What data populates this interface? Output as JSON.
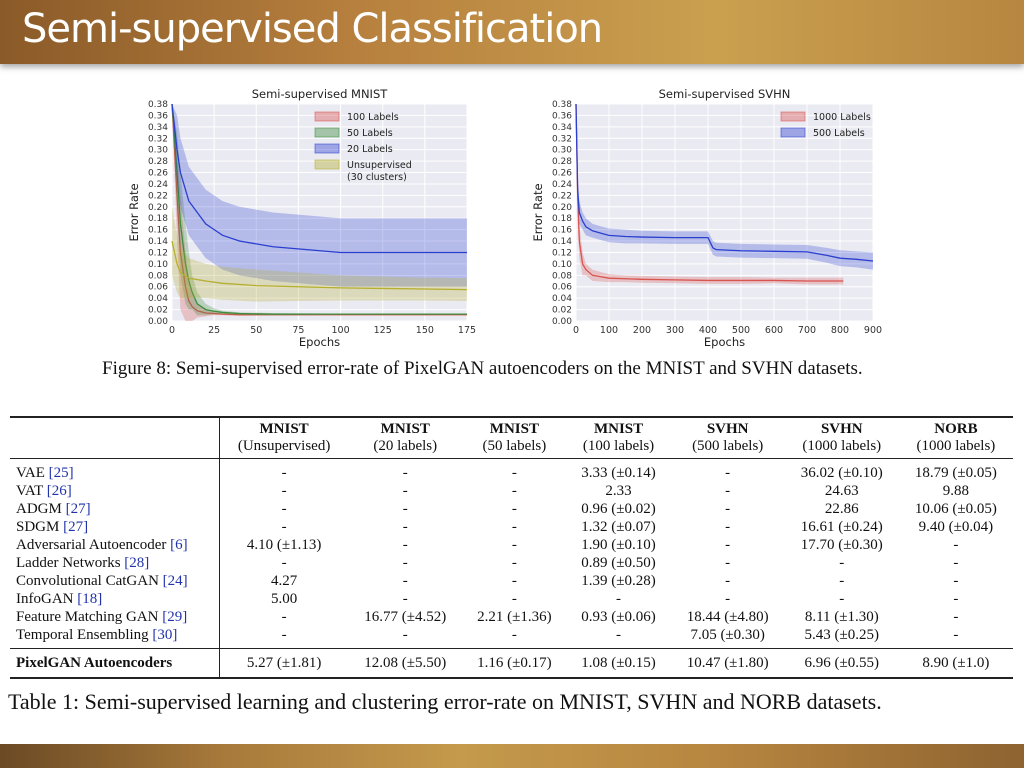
{
  "slide": {
    "title": "Semi-supervised Classification"
  },
  "figure": {
    "caption": "Figure 8: Semi-supervised error-rate of PixelGAN autoencoders on the MNIST and SVHN datasets.",
    "colors": {
      "red": "#e08a8a",
      "green": "#5aa85a",
      "blue": "#3a4fd0",
      "olive": "#c8c24a"
    }
  },
  "chart_data": [
    {
      "type": "line",
      "title": "Semi-supervised MNIST",
      "xlabel": "Epochs",
      "ylabel": "Error Rate",
      "xlim": [
        0,
        175
      ],
      "ylim": [
        0,
        0.38
      ],
      "xticks": [
        "0",
        "25",
        "50",
        "75",
        "100",
        "125",
        "150",
        "175"
      ],
      "yticks": [
        "0.00",
        "0.02",
        "0.04",
        "0.06",
        "0.08",
        "0.10",
        "0.12",
        "0.14",
        "0.16",
        "0.18",
        "0.20",
        "0.22",
        "0.24",
        "0.26",
        "0.28",
        "0.30",
        "0.32",
        "0.34",
        "0.36",
        "0.38"
      ],
      "grid": true,
      "legend_position": "top-right",
      "series": [
        {
          "name": "100 Labels",
          "color": "#d9534f",
          "x": [
            0,
            3,
            5,
            8,
            10,
            12,
            15,
            20,
            25,
            30,
            40,
            60,
            100,
            175
          ],
          "y": [
            0.38,
            0.22,
            0.12,
            0.06,
            0.035,
            0.025,
            0.018,
            0.014,
            0.013,
            0.012,
            0.011,
            0.011,
            0.011,
            0.011
          ],
          "band": [
            0.38,
            0.3,
            0.22,
            0.12,
            0.07,
            0.05,
            0.03,
            0.02,
            0.016,
            0.014,
            0.013,
            0.012,
            0.012,
            0.012
          ]
        },
        {
          "name": "50 Labels",
          "color": "#3c8d3c",
          "x": [
            0,
            3,
            5,
            8,
            10,
            12,
            15,
            20,
            25,
            30,
            40,
            60,
            100,
            175
          ],
          "y": [
            0.38,
            0.26,
            0.17,
            0.1,
            0.07,
            0.05,
            0.03,
            0.02,
            0.017,
            0.015,
            0.013,
            0.012,
            0.012,
            0.012
          ],
          "band": [
            0.38,
            0.33,
            0.26,
            0.17,
            0.12,
            0.08,
            0.05,
            0.03,
            0.022,
            0.018,
            0.015,
            0.014,
            0.013,
            0.013
          ]
        },
        {
          "name": "20 Labels",
          "color": "#2a3fcf",
          "x": [
            0,
            3,
            5,
            8,
            10,
            15,
            20,
            25,
            30,
            40,
            60,
            80,
            100,
            120,
            150,
            175
          ],
          "y": [
            0.38,
            0.3,
            0.26,
            0.23,
            0.21,
            0.19,
            0.17,
            0.16,
            0.15,
            0.14,
            0.13,
            0.125,
            0.12,
            0.12,
            0.12,
            0.12
          ],
          "band": [
            0.38,
            0.36,
            0.32,
            0.29,
            0.27,
            0.25,
            0.23,
            0.22,
            0.21,
            0.2,
            0.19,
            0.185,
            0.18,
            0.18,
            0.18,
            0.18
          ]
        },
        {
          "name": "Unsupervised\n(30 clusters)",
          "color": "#b5ae2e",
          "x": [
            0,
            3,
            5,
            10,
            20,
            30,
            50,
            75,
            100,
            125,
            150,
            175
          ],
          "y": [
            0.14,
            0.1,
            0.085,
            0.075,
            0.07,
            0.066,
            0.062,
            0.06,
            0.058,
            0.057,
            0.056,
            0.055
          ],
          "band": [
            0.2,
            0.15,
            0.13,
            0.11,
            0.1,
            0.095,
            0.09,
            0.085,
            0.08,
            0.078,
            0.076,
            0.075
          ]
        }
      ]
    },
    {
      "type": "line",
      "title": "Semi-supervised SVHN",
      "xlabel": "Epochs",
      "ylabel": "Error Rate",
      "xlim": [
        0,
        900
      ],
      "ylim": [
        0,
        0.38
      ],
      "xticks": [
        "0",
        "100",
        "200",
        "300",
        "400",
        "500",
        "600",
        "700",
        "800",
        "900"
      ],
      "yticks": [
        "0.00",
        "0.02",
        "0.04",
        "0.06",
        "0.08",
        "0.10",
        "0.12",
        "0.14",
        "0.16",
        "0.18",
        "0.20",
        "0.22",
        "0.24",
        "0.26",
        "0.28",
        "0.30",
        "0.32",
        "0.34",
        "0.36",
        "0.38"
      ],
      "grid": true,
      "legend_position": "top-right",
      "series": [
        {
          "name": "1000 Labels",
          "color": "#d9534f",
          "x": [
            0,
            5,
            10,
            20,
            30,
            50,
            80,
            100,
            150,
            200,
            300,
            400,
            500,
            600,
            700,
            810
          ],
          "y": [
            0.38,
            0.22,
            0.14,
            0.1,
            0.09,
            0.08,
            0.077,
            0.075,
            0.074,
            0.073,
            0.072,
            0.071,
            0.071,
            0.071,
            0.07,
            0.07
          ],
          "band": [
            0.38,
            0.26,
            0.17,
            0.12,
            0.1,
            0.09,
            0.085,
            0.082,
            0.08,
            0.079,
            0.078,
            0.077,
            0.077,
            0.076,
            0.076,
            0.076
          ]
        },
        {
          "name": "500 Labels",
          "color": "#2a3fcf",
          "x": [
            0,
            5,
            10,
            20,
            30,
            50,
            80,
            100,
            150,
            200,
            300,
            400,
            415,
            425,
            500,
            600,
            700,
            760,
            800,
            850,
            900
          ],
          "y": [
            0.38,
            0.23,
            0.19,
            0.175,
            0.165,
            0.158,
            0.153,
            0.15,
            0.148,
            0.147,
            0.146,
            0.146,
            0.128,
            0.125,
            0.123,
            0.122,
            0.121,
            0.115,
            0.11,
            0.108,
            0.105
          ],
          "band": [
            0.38,
            0.25,
            0.21,
            0.19,
            0.18,
            0.17,
            0.165,
            0.162,
            0.16,
            0.158,
            0.157,
            0.157,
            0.14,
            0.137,
            0.135,
            0.134,
            0.133,
            0.128,
            0.124,
            0.122,
            0.12
          ]
        }
      ]
    }
  ],
  "table": {
    "caption": "Table 1: Semi-supervised learning and clustering error-rate on MNIST, SVHN and NORB datasets.",
    "headers": [
      {
        "name": "MNIST",
        "sub": "(Unsupervised)"
      },
      {
        "name": "MNIST",
        "sub": "(20 labels)"
      },
      {
        "name": "MNIST",
        "sub": "(50 labels)"
      },
      {
        "name": "MNIST",
        "sub": "(100 labels)"
      },
      {
        "name": "SVHN",
        "sub": "(500 labels)"
      },
      {
        "name": "SVHN",
        "sub": "(1000 labels)"
      },
      {
        "name": "NORB",
        "sub": "(1000 labels)"
      }
    ],
    "rows": [
      {
        "method": "VAE ",
        "ref": "[25]",
        "cells": [
          "-",
          "-",
          "-",
          "3.33 (±0.14)",
          "-",
          "36.02 (±0.10)",
          "18.79 (±0.05)"
        ]
      },
      {
        "method": "VAT ",
        "ref": "[26]",
        "cells": [
          "-",
          "-",
          "-",
          "2.33",
          "-",
          "24.63",
          "9.88"
        ]
      },
      {
        "method": "ADGM ",
        "ref": "[27]",
        "cells": [
          "-",
          "-",
          "-",
          "0.96 (±0.02)",
          "-",
          "22.86",
          "10.06 (±0.05)"
        ]
      },
      {
        "method": "SDGM ",
        "ref": "[27]",
        "cells": [
          "-",
          "-",
          "-",
          "1.32 (±0.07)",
          "-",
          "16.61 (±0.24)",
          "9.40 (±0.04)"
        ]
      },
      {
        "method": "Adversarial Autoencoder ",
        "ref": "[6]",
        "cells": [
          "4.10 (±1.13)",
          "-",
          "-",
          "1.90 (±0.10)",
          "-",
          "17.70 (±0.30)",
          "-"
        ]
      },
      {
        "method": "Ladder Networks ",
        "ref": "[28]",
        "cells": [
          "-",
          "-",
          "-",
          "0.89 (±0.50)",
          "-",
          "-",
          "-"
        ]
      },
      {
        "method": "Convolutional CatGAN ",
        "ref": "[24]",
        "cells": [
          "4.27",
          "-",
          "-",
          "1.39 (±0.28)",
          "-",
          "-",
          "-"
        ]
      },
      {
        "method": "InfoGAN ",
        "ref": "[18]",
        "cells": [
          "5.00",
          "-",
          "-",
          "-",
          "-",
          "-",
          "-"
        ]
      },
      {
        "method": "Feature Matching GAN ",
        "ref": "[29]",
        "cells": [
          "-",
          "16.77 (±4.52)",
          "2.21 (±1.36)",
          "0.93 (±0.06)",
          "18.44 (±4.80)",
          "8.11 (±1.30)",
          "-"
        ]
      },
      {
        "method": "Temporal Ensembling ",
        "ref": "[30]",
        "cells": [
          "-",
          "-",
          "-",
          "-",
          "7.05 (±0.30)",
          "5.43 (±0.25)",
          "-"
        ]
      }
    ],
    "ours": {
      "method": "PixelGAN Autoencoders",
      "cells": [
        "5.27 (±1.81)",
        "12.08 (±5.50)",
        "1.16 (±0.17)",
        "1.08 (±0.15)",
        "10.47 (±1.80)",
        "6.96 (±0.55)",
        "8.90 (±1.0)"
      ]
    }
  }
}
